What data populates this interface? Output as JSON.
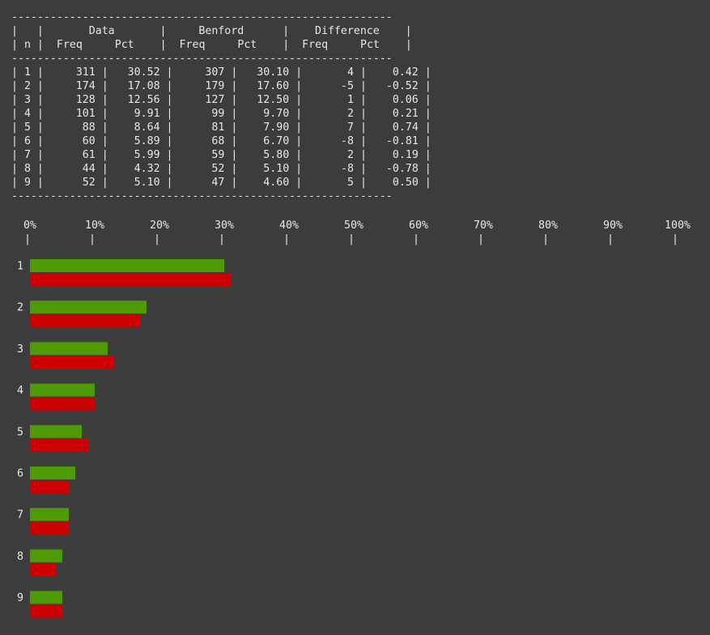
{
  "table": {
    "rule": "-----------------------------------------------------------",
    "header_groups": [
      "Data",
      "Benford",
      "Difference"
    ],
    "row_label": "n",
    "sub_headers": [
      "Freq",
      "Pct",
      "Freq",
      "Pct",
      "Freq",
      "Pct"
    ],
    "rows": [
      [
        "1",
        "311",
        "30.52",
        "307",
        "30.10",
        "4",
        "0.42"
      ],
      [
        "2",
        "174",
        "17.08",
        "179",
        "17.60",
        "-5",
        "-0.52"
      ],
      [
        "3",
        "128",
        "12.56",
        "127",
        "12.50",
        "1",
        "0.06"
      ],
      [
        "4",
        "101",
        "9.91",
        "99",
        "9.70",
        "2",
        "0.21"
      ],
      [
        "5",
        "88",
        "8.64",
        "81",
        "7.90",
        "7",
        "0.74"
      ],
      [
        "6",
        "60",
        "5.89",
        "68",
        "6.70",
        "-8",
        "-0.81"
      ],
      [
        "7",
        "61",
        "5.99",
        "59",
        "5.80",
        "2",
        "0.19"
      ],
      [
        "8",
        "44",
        "4.32",
        "52",
        "5.10",
        "-8",
        "-0.78"
      ],
      [
        "9",
        "52",
        "5.10",
        "47",
        "4.60",
        "5",
        "0.50"
      ]
    ]
  },
  "chart_data": {
    "type": "bar",
    "orientation": "horizontal",
    "categories": [
      "1",
      "2",
      "3",
      "4",
      "5",
      "6",
      "7",
      "8",
      "9"
    ],
    "x_ticks": [
      "0%",
      "10%",
      "20%",
      "30%",
      "40%",
      "50%",
      "60%",
      "70%",
      "80%",
      "90%",
      "100%"
    ],
    "xlim": [
      0,
      100
    ],
    "tick_mark": "|",
    "series": [
      {
        "color": "#4e9a06",
        "values": [
          30,
          18,
          12,
          10,
          8,
          7,
          6,
          5,
          5
        ]
      },
      {
        "color": "#cc0000",
        "values": [
          31,
          17,
          13,
          10,
          9,
          6,
          6,
          4,
          5
        ]
      }
    ],
    "grid": false,
    "legend": "none"
  }
}
